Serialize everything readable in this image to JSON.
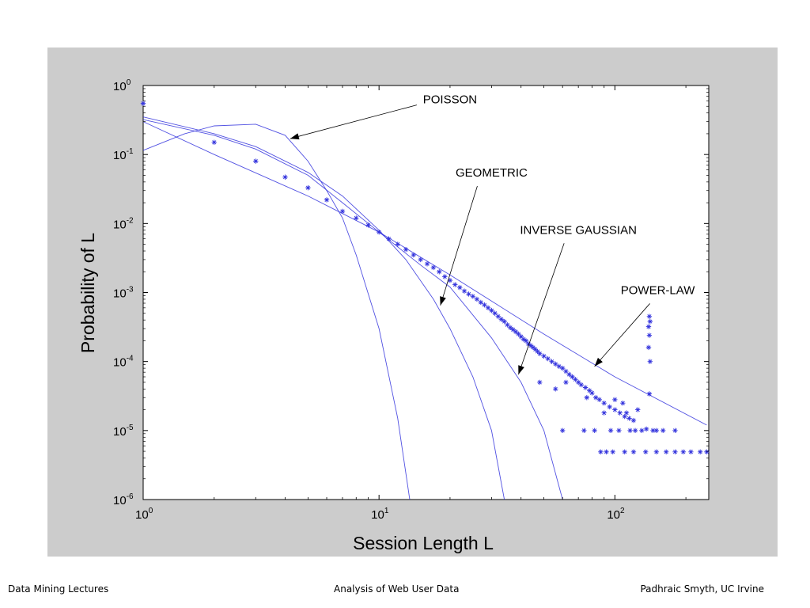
{
  "chart_data": {
    "type": "scatter",
    "xlabel": "Session Length L",
    "ylabel": "Probability of L",
    "x_scale": "log",
    "y_scale": "log",
    "xlim": [
      1,
      250
    ],
    "ylim": [
      1e-06,
      1
    ],
    "grid": false,
    "x_ticks": [
      {
        "value": 1,
        "base": "10",
        "exp": "0"
      },
      {
        "value": 10,
        "base": "10",
        "exp": "1"
      },
      {
        "value": 100,
        "base": "10",
        "exp": "2"
      }
    ],
    "y_ticks": [
      {
        "value": 1,
        "base": "10",
        "exp": "0"
      },
      {
        "value": 0.1,
        "base": "10",
        "exp": "-1"
      },
      {
        "value": 0.01,
        "base": "10",
        "exp": "-2"
      },
      {
        "value": 0.001,
        "base": "10",
        "exp": "-3"
      },
      {
        "value": 0.0001,
        "base": "10",
        "exp": "-4"
      },
      {
        "value": 1e-05,
        "base": "10",
        "exp": "-5"
      },
      {
        "value": 1e-06,
        "base": "10",
        "exp": "-6"
      }
    ],
    "series_color": "#3333dd",
    "empirical_points": [
      [
        1,
        0.55
      ],
      [
        2,
        0.15
      ],
      [
        3,
        0.08
      ],
      [
        4,
        0.047
      ],
      [
        5,
        0.033
      ],
      [
        6,
        0.022
      ],
      [
        7,
        0.015
      ],
      [
        8,
        0.012
      ],
      [
        9,
        0.0095
      ],
      [
        10,
        0.0075
      ],
      [
        11,
        0.006
      ],
      [
        12,
        0.005
      ],
      [
        13,
        0.0042
      ],
      [
        14,
        0.0035
      ],
      [
        15,
        0.003
      ],
      [
        16,
        0.0026
      ],
      [
        17,
        0.0023
      ],
      [
        18,
        0.002
      ],
      [
        19,
        0.0017
      ],
      [
        20,
        0.0015
      ],
      [
        21,
        0.0013
      ],
      [
        22,
        0.00118
      ],
      [
        23,
        0.00105
      ],
      [
        24,
        0.00095
      ],
      [
        25,
        0.00088
      ],
      [
        26,
        0.0008
      ],
      [
        27,
        0.00072
      ],
      [
        28,
        0.00066
      ],
      [
        29,
        0.0006
      ],
      [
        30,
        0.00055
      ],
      [
        31,
        0.0005
      ],
      [
        32,
        0.00045
      ],
      [
        33,
        0.00041
      ],
      [
        34,
        0.00038
      ],
      [
        35,
        0.00034
      ],
      [
        36,
        0.00031
      ],
      [
        37,
        0.00029
      ],
      [
        38,
        0.00027
      ],
      [
        39,
        0.00025
      ],
      [
        40,
        0.00023
      ],
      [
        41,
        0.00021
      ],
      [
        42,
        0.0002
      ],
      [
        43,
        0.00018
      ],
      [
        44,
        0.00017
      ],
      [
        45,
        0.00016
      ],
      [
        46,
        0.00015
      ],
      [
        47,
        0.00014
      ],
      [
        48,
        0.00013
      ],
      [
        50,
        0.00012
      ],
      [
        52,
        0.00011
      ],
      [
        54,
        0.0001
      ],
      [
        56,
        9.2e-05
      ],
      [
        58,
        8.5e-05
      ],
      [
        60,
        8e-05
      ],
      [
        62,
        7.2e-05
      ],
      [
        64,
        6.5e-05
      ],
      [
        66,
        6e-05
      ],
      [
        68,
        5.5e-05
      ],
      [
        70,
        5e-05
      ],
      [
        72,
        4.6e-05
      ],
      [
        75,
        4.2e-05
      ],
      [
        78,
        3.8e-05
      ],
      [
        80,
        3.5e-05
      ],
      [
        83,
        3e-05
      ],
      [
        86,
        2.8e-05
      ],
      [
        90,
        2.5e-05
      ],
      [
        95,
        2.2e-05
      ],
      [
        100,
        2e-05
      ],
      [
        105,
        1.8e-05
      ],
      [
        110,
        1.6e-05
      ],
      [
        115,
        1.5e-05
      ],
      [
        120,
        1.4e-05
      ],
      [
        48,
        5e-05
      ],
      [
        56,
        4e-05
      ],
      [
        60,
        1e-05
      ],
      [
        62,
        5e-05
      ],
      [
        74,
        1e-05
      ],
      [
        76,
        3e-05
      ],
      [
        82,
        1e-05
      ],
      [
        90,
        1.8e-05
      ],
      [
        96,
        1e-05
      ],
      [
        100,
        2.8e-05
      ],
      [
        104,
        1e-05
      ],
      [
        108,
        2.5e-05
      ],
      [
        112,
        1.8e-05
      ],
      [
        116,
        1e-05
      ],
      [
        122,
        1e-05
      ],
      [
        125,
        2e-05
      ],
      [
        130,
        1e-05
      ],
      [
        136,
        1.05e-05
      ],
      [
        140,
        3.4e-05
      ],
      [
        145,
        1e-05
      ],
      [
        150,
        1e-05
      ],
      [
        160,
        1e-05
      ],
      [
        180,
        1e-05
      ],
      [
        87,
        4.9e-06
      ],
      [
        92,
        4.9e-06
      ],
      [
        98,
        4.9e-06
      ],
      [
        110,
        4.9e-06
      ],
      [
        120,
        4.9e-06
      ],
      [
        135,
        4.9e-06
      ],
      [
        150,
        4.9e-06
      ],
      [
        165,
        4.9e-06
      ],
      [
        180,
        4.9e-06
      ],
      [
        195,
        4.9e-06
      ],
      [
        210,
        4.9e-06
      ],
      [
        230,
        4.9e-06
      ],
      [
        245,
        4.9e-06
      ],
      [
        140,
        0.00045
      ],
      [
        141,
        0.00038
      ],
      [
        139,
        0.00032
      ],
      [
        140,
        0.00024
      ],
      [
        139,
        0.00016
      ],
      [
        141,
        0.0001
      ]
    ],
    "fitted_curves": [
      {
        "name": "POISSON",
        "points": [
          [
            1,
            0.115
          ],
          [
            1.5,
            0.2
          ],
          [
            2,
            0.26
          ],
          [
            3,
            0.275
          ],
          [
            4,
            0.19
          ],
          [
            5,
            0.08
          ],
          [
            6,
            0.03
          ],
          [
            7,
            0.012
          ],
          [
            8,
            0.0035
          ],
          [
            10,
            0.0003
          ],
          [
            12,
            1.5e-05
          ],
          [
            13.5,
            1e-06
          ]
        ]
      },
      {
        "name": "GEOMETRIC",
        "points": [
          [
            1,
            0.35
          ],
          [
            2,
            0.2
          ],
          [
            3,
            0.13
          ],
          [
            5,
            0.055
          ],
          [
            7,
            0.025
          ],
          [
            10,
            0.008
          ],
          [
            13,
            0.003
          ],
          [
            17,
            0.0008
          ],
          [
            20,
            0.0003
          ],
          [
            25,
            6e-05
          ],
          [
            30,
            1e-05
          ],
          [
            34,
            1e-06
          ]
        ]
      },
      {
        "name": "INVERSE GAUSSIAN",
        "points": [
          [
            1,
            0.32
          ],
          [
            2,
            0.19
          ],
          [
            3,
            0.12
          ],
          [
            5,
            0.05
          ],
          [
            7,
            0.02
          ],
          [
            10,
            0.0075
          ],
          [
            15,
            0.0025
          ],
          [
            20,
            0.0012
          ],
          [
            30,
            0.00022
          ],
          [
            40,
            5e-05
          ],
          [
            50,
            1e-05
          ],
          [
            60,
            1e-06
          ]
        ]
      },
      {
        "name": "POWER-LAW",
        "points": [
          [
            1,
            0.3
          ],
          [
            2,
            0.1
          ],
          [
            5,
            0.025
          ],
          [
            10,
            0.0075
          ],
          [
            20,
            0.0018
          ],
          [
            50,
            0.00025
          ],
          [
            100,
            6e-05
          ],
          [
            245,
            1.2e-05
          ]
        ]
      }
    ],
    "annotations": [
      {
        "text": "POISSON",
        "label_at": [
          20,
          0.55
        ],
        "arrow_to": [
          4.2,
          0.17
        ]
      },
      {
        "text": "GEOMETRIC",
        "label_at": [
          30,
          0.048
        ],
        "arrow_to": [
          18.2,
          0.00065
        ]
      },
      {
        "text": "INVERSE GAUSSIAN",
        "label_at": [
          70,
          0.0071
        ],
        "arrow_to": [
          39,
          6.5e-05
        ]
      },
      {
        "text": "POWER-LAW",
        "label_at": [
          152,
          0.00095
        ],
        "arrow_to": [
          82,
          8.5e-05
        ]
      }
    ]
  },
  "footer": {
    "left": "Data Mining Lectures",
    "center": "Analysis of Web User Data",
    "right": "Padhraic Smyth, UC Irvine"
  }
}
